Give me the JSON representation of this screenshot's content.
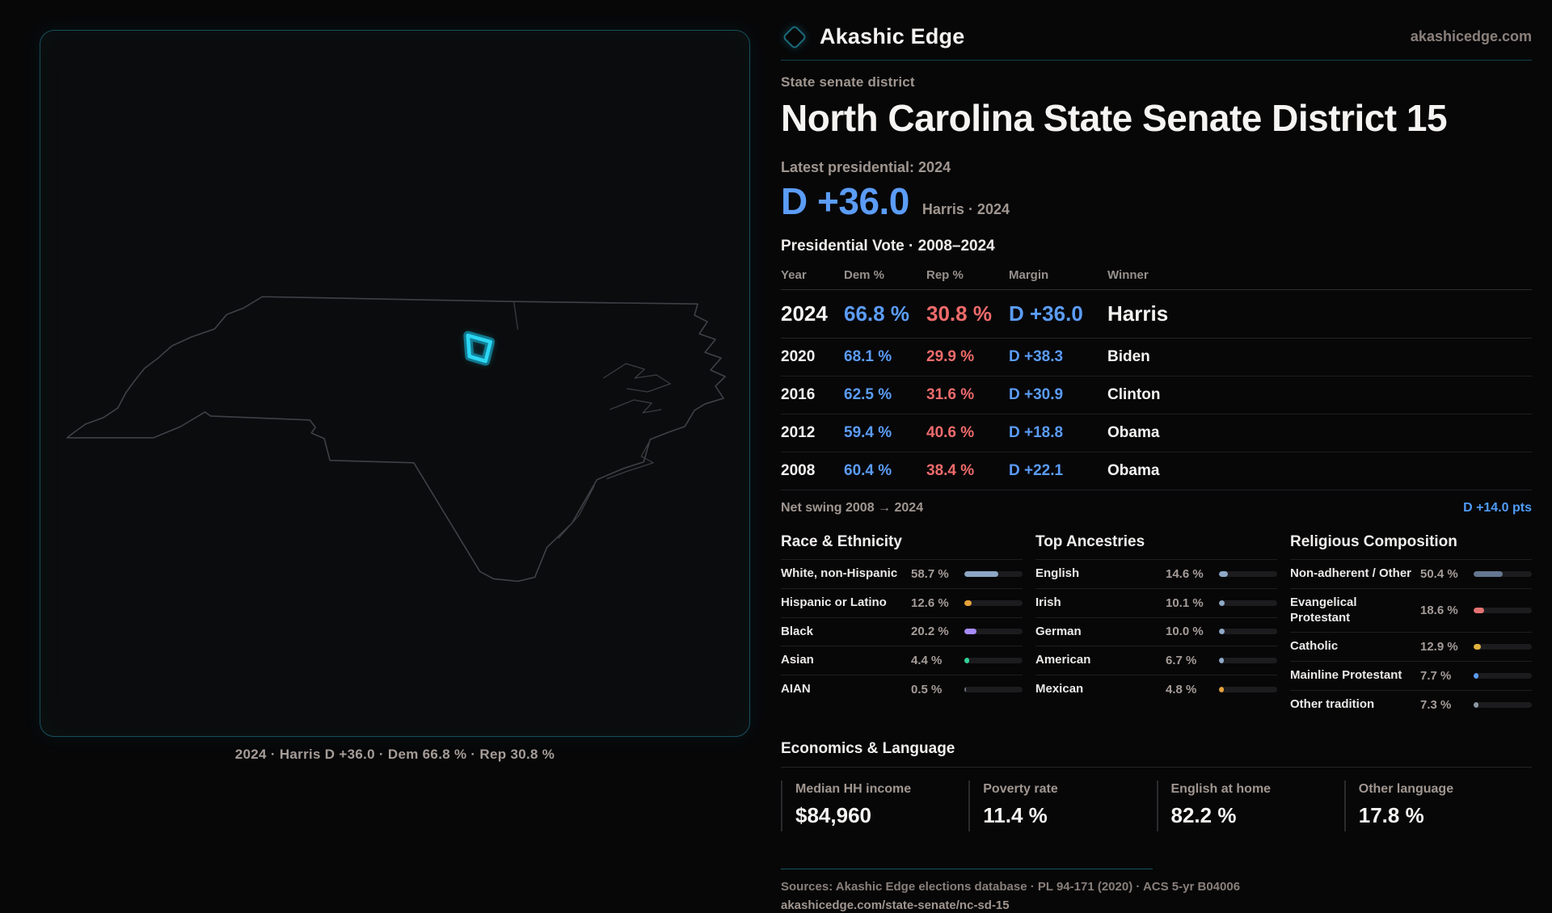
{
  "colors": {
    "dem": "#5b9cf6",
    "rep": "#ef6b6b",
    "accent": "#22d3ee"
  },
  "brand": {
    "name": "Akashic Edge",
    "site": "akashicedge.com"
  },
  "map": {
    "caption": "2024 · Harris D +36.0 · Dem 66.8 % · Rep 30.8 %"
  },
  "page": {
    "kicker": "State senate district",
    "title": "North Carolina State Senate District 15"
  },
  "latest": {
    "label": "Latest presidential: 2024",
    "margin": "D +36.0",
    "detail": "Harris · 2024"
  },
  "vote_table": {
    "title": "Presidential Vote · 2008–2024",
    "columns": [
      "Year",
      "Dem %",
      "Rep %",
      "Margin",
      "Winner"
    ],
    "rows": [
      {
        "year": "2024",
        "dem": "66.8 %",
        "rep": "30.8 %",
        "margin": "D +36.0",
        "winner": "Harris",
        "featured": true
      },
      {
        "year": "2020",
        "dem": "68.1 %",
        "rep": "29.9 %",
        "margin": "D +38.3",
        "winner": "Biden",
        "featured": false
      },
      {
        "year": "2016",
        "dem": "62.5 %",
        "rep": "31.6 %",
        "margin": "D +30.9",
        "winner": "Clinton",
        "featured": false
      },
      {
        "year": "2012",
        "dem": "59.4 %",
        "rep": "40.6 %",
        "margin": "D +18.8",
        "winner": "Obama",
        "featured": false
      },
      {
        "year": "2008",
        "dem": "60.4 %",
        "rep": "38.4 %",
        "margin": "D +22.1",
        "winner": "Obama",
        "featured": false
      }
    ]
  },
  "net_swing": {
    "label": "Net swing 2008 → 2024",
    "value": "D +14.0 pts"
  },
  "sections": {
    "race": {
      "title": "Race & Ethnicity",
      "rows": [
        {
          "label": "White, non-Hispanic",
          "value": "58.7 %",
          "pct": 58.7,
          "color": "#8ea7c4"
        },
        {
          "label": "Hispanic or Latino",
          "value": "12.6 %",
          "pct": 12.6,
          "color": "#e6a23c"
        },
        {
          "label": "Black",
          "value": "20.2 %",
          "pct": 20.2,
          "color": "#a78bfa"
        },
        {
          "label": "Asian",
          "value": "4.4 %",
          "pct": 4.4,
          "color": "#34d399"
        },
        {
          "label": "AIAN",
          "value": "0.5 %",
          "pct": 0.5,
          "color": "#6b7280"
        }
      ]
    },
    "ancestries": {
      "title": "Top Ancestries",
      "rows": [
        {
          "label": "English",
          "value": "14.6 %",
          "pct": 14.6,
          "color": "#8fa9c7"
        },
        {
          "label": "Irish",
          "value": "10.1 %",
          "pct": 10.1,
          "color": "#8fa9c7"
        },
        {
          "label": "German",
          "value": "10.0 %",
          "pct": 10.0,
          "color": "#8fa9c7"
        },
        {
          "label": "American",
          "value": "6.7 %",
          "pct": 6.7,
          "color": "#8fa9c7"
        },
        {
          "label": "Mexican",
          "value": "4.8 %",
          "pct": 4.8,
          "color": "#e6a23c"
        }
      ]
    },
    "religion": {
      "title": "Religious Composition",
      "rows": [
        {
          "label": "Non-adherent / Other",
          "value": "50.4 %",
          "pct": 50.4,
          "color": "#64778f"
        },
        {
          "label": "Evangelical Protestant",
          "value": "18.6 %",
          "pct": 18.6,
          "color": "#e57373"
        },
        {
          "label": "Catholic",
          "value": "12.9 %",
          "pct": 12.9,
          "color": "#e0b23d"
        },
        {
          "label": "Mainline Protestant",
          "value": "7.7 %",
          "pct": 7.7,
          "color": "#5b9cf6"
        },
        {
          "label": "Other tradition",
          "value": "7.3 %",
          "pct": 7.3,
          "color": "#8e98a3"
        }
      ]
    }
  },
  "economics": {
    "title": "Economics & Language",
    "stats": [
      {
        "label": "Median HH income",
        "value": "$84,960"
      },
      {
        "label": "Poverty rate",
        "value": "11.4 %"
      },
      {
        "label": "English at home",
        "value": "82.2 %"
      },
      {
        "label": "Other language",
        "value": "17.8 %"
      }
    ]
  },
  "footer": {
    "sources": "Sources: Akashic Edge elections database · PL 94-171 (2020) · ACS 5-yr B04006",
    "permalink": "akashicedge.com/state-senate/nc-sd-15"
  }
}
